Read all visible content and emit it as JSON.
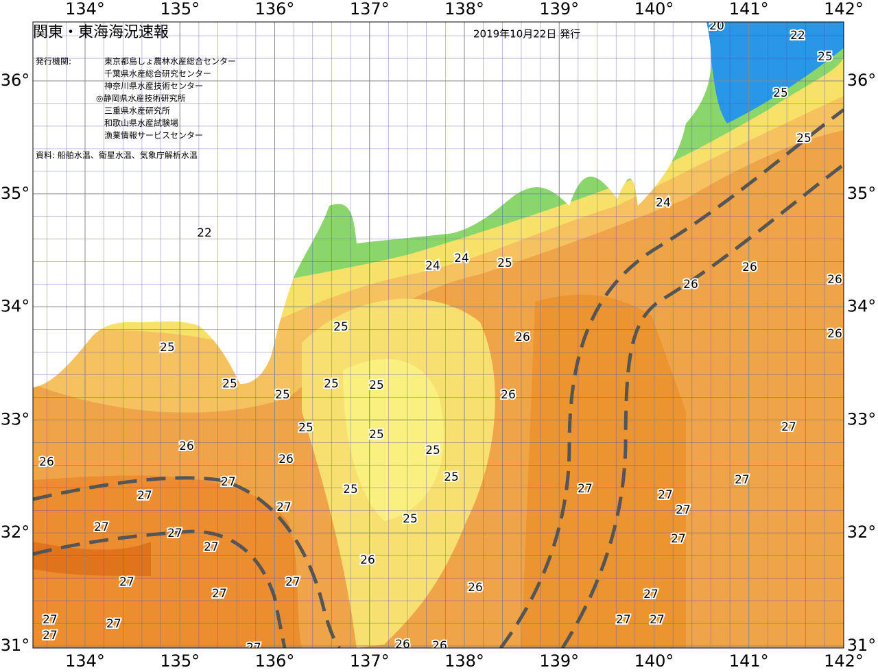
{
  "header": {
    "title": "関東・東海海況速報",
    "date": "2019年10月22日 発行"
  },
  "publishers": {
    "label": "発行機関:",
    "items": [
      "東京都島しょ農林水産総合センター",
      "千葉県水産総合研究センター",
      "神奈川県水産技術センター",
      "◎静岡県水産技術研究所",
      "三重県水産研究所",
      "和歌山県水産試験場",
      "漁業情報サービスセンター"
    ]
  },
  "source": "資料: 船舶水温、衛星水温、気象庁解析水温",
  "longitude_ticks": [
    {
      "value": 134,
      "label": "134°"
    },
    {
      "value": 135,
      "label": "135°"
    },
    {
      "value": 136,
      "label": "136°"
    },
    {
      "value": 137,
      "label": "137°"
    },
    {
      "value": 138,
      "label": "138°"
    },
    {
      "value": 139,
      "label": "139°"
    },
    {
      "value": 140,
      "label": "140°"
    },
    {
      "value": 141,
      "label": "141°"
    },
    {
      "value": 142,
      "label": "142°"
    }
  ],
  "latitude_ticks": [
    {
      "value": 31,
      "label": "31°"
    },
    {
      "value": 32,
      "label": "32°"
    },
    {
      "value": 33,
      "label": "33°"
    },
    {
      "value": 34,
      "label": "34°"
    },
    {
      "value": 35,
      "label": "35°"
    },
    {
      "value": 36,
      "label": "36°"
    }
  ],
  "isotherm_labels": [
    20,
    22,
    25,
    25,
    25,
    24,
    24,
    24,
    25,
    22,
    26,
    26,
    26,
    26,
    25,
    26,
    25,
    25,
    25,
    25,
    25,
    26,
    25,
    25,
    27,
    26,
    25,
    26,
    26,
    27,
    25,
    27,
    27,
    25,
    27,
    27,
    27,
    27,
    25,
    27,
    27,
    27,
    27,
    26,
    27,
    27,
    26,
    27,
    27,
    27,
    27,
    27,
    27,
    27,
    27,
    26,
    26
  ]
}
